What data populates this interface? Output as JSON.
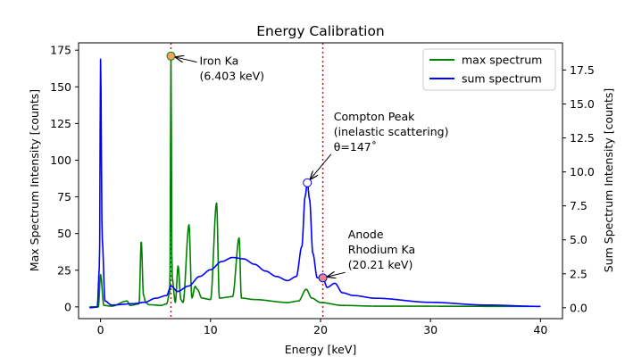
{
  "chart_data": {
    "type": "line",
    "title": "Energy Calibration",
    "xlabel": "Energy [keV]",
    "ylabel": "Max Spectrum Intensity [counts]",
    "y2label": "Sum Spectrum Intensity [counts]",
    "xlim": [
      -2,
      42
    ],
    "ylim": [
      -8,
      180
    ],
    "y2lim": [
      -0.8,
      19.5
    ],
    "xticks": [
      0,
      10,
      20,
      30,
      40
    ],
    "yticks": [
      0,
      25,
      50,
      75,
      100,
      125,
      150,
      175
    ],
    "y2ticks": [
      0.0,
      2.5,
      5.0,
      7.5,
      10.0,
      12.5,
      15.0,
      17.5
    ],
    "y2tick_labels": [
      "0.0",
      "2.5",
      "5.0",
      "7.5",
      "10.0",
      "12.5",
      "15.0",
      "17.5"
    ],
    "grid": false,
    "legend_position": "top-right",
    "series": [
      {
        "name": "max spectrum",
        "axis": "left",
        "color": "#008000",
        "baseline": 0.5,
        "points": [
          [
            -1,
            0
          ],
          [
            -0.2,
            0
          ],
          [
            0,
            22
          ],
          [
            0.3,
            1
          ],
          [
            1,
            0.5
          ],
          [
            2.4,
            4
          ],
          [
            2.7,
            1
          ],
          [
            3.5,
            2
          ],
          [
            3.7,
            45
          ],
          [
            3.9,
            8
          ],
          [
            4.1,
            3
          ],
          [
            4.4,
            1.5
          ],
          [
            5.5,
            1
          ],
          [
            6.0,
            2
          ],
          [
            6.3,
            10
          ],
          [
            6.403,
            171
          ],
          [
            6.5,
            20
          ],
          [
            6.8,
            3
          ],
          [
            7.05,
            28
          ],
          [
            7.3,
            5
          ],
          [
            7.5,
            3
          ],
          [
            8.04,
            56
          ],
          [
            8.3,
            6
          ],
          [
            8.6,
            14
          ],
          [
            8.8,
            12
          ],
          [
            9.2,
            6
          ],
          [
            10,
            5
          ],
          [
            10.55,
            71
          ],
          [
            10.8,
            6
          ],
          [
            12,
            7
          ],
          [
            12.6,
            47
          ],
          [
            12.8,
            6
          ],
          [
            14,
            5
          ],
          [
            17,
            3
          ],
          [
            18,
            4
          ],
          [
            18.7,
            12
          ],
          [
            19.2,
            6
          ],
          [
            20,
            3
          ],
          [
            22,
            1
          ],
          [
            25,
            0.5
          ],
          [
            40,
            0.3
          ]
        ]
      },
      {
        "name": "sum spectrum",
        "axis": "right",
        "color": "#0000ff",
        "baseline": 0.15,
        "points": [
          [
            -1,
            0
          ],
          [
            -0.3,
            0.05
          ],
          [
            -0.1,
            3
          ],
          [
            0,
            18.3
          ],
          [
            0.15,
            5
          ],
          [
            0.4,
            0.5
          ],
          [
            1,
            0.2
          ],
          [
            3,
            0.3
          ],
          [
            4,
            0.4
          ],
          [
            5,
            0.7
          ],
          [
            6,
            0.9
          ],
          [
            6.403,
            1.6
          ],
          [
            7,
            1.2
          ],
          [
            8,
            1.6
          ],
          [
            9,
            2.3
          ],
          [
            10,
            2.8
          ],
          [
            11,
            3.4
          ],
          [
            12,
            3.7
          ],
          [
            13,
            3.6
          ],
          [
            14,
            3.2
          ],
          [
            15,
            2.7
          ],
          [
            16,
            2.3
          ],
          [
            17,
            2.0
          ],
          [
            17.8,
            2.3
          ],
          [
            18.3,
            4.5
          ],
          [
            18.6,
            8.2
          ],
          [
            18.8,
            9.2
          ],
          [
            19.0,
            8.0
          ],
          [
            19.3,
            4.0
          ],
          [
            19.7,
            2.2
          ],
          [
            20.21,
            2.2
          ],
          [
            20.6,
            1.5
          ],
          [
            21.3,
            1.8
          ],
          [
            22,
            1.1
          ],
          [
            23,
            0.9
          ],
          [
            25,
            0.7
          ],
          [
            30,
            0.4
          ],
          [
            35,
            0.2
          ],
          [
            40,
            0.1
          ]
        ]
      }
    ],
    "calibration_lines": [
      6.403,
      20.21
    ],
    "markers": [
      {
        "axis": "left",
        "x": 6.403,
        "y": 171,
        "fill": "#f4a460"
      },
      {
        "axis": "right",
        "x": 18.8,
        "y": 9.2,
        "fill": "#ffffff"
      },
      {
        "axis": "right",
        "x": 20.21,
        "y": 2.2,
        "fill": "#e8868b"
      }
    ],
    "annotations": [
      {
        "target": 0,
        "text_anchor_data": [
          9,
          165
        ],
        "lines": [
          "Iron Ka",
          "(6.403 keV)"
        ]
      },
      {
        "target": 1,
        "text_anchor_data": [
          21.2,
          13.8
        ],
        "lines": [
          "Compton Peak",
          "(inelastic scattering)",
          "θ=147˚"
        ]
      },
      {
        "target": 2,
        "text_anchor_data": [
          22.5,
          5.1
        ],
        "lines": [
          "Anode",
          "Rhodium Ka",
          "(20.21 keV)"
        ]
      }
    ]
  }
}
